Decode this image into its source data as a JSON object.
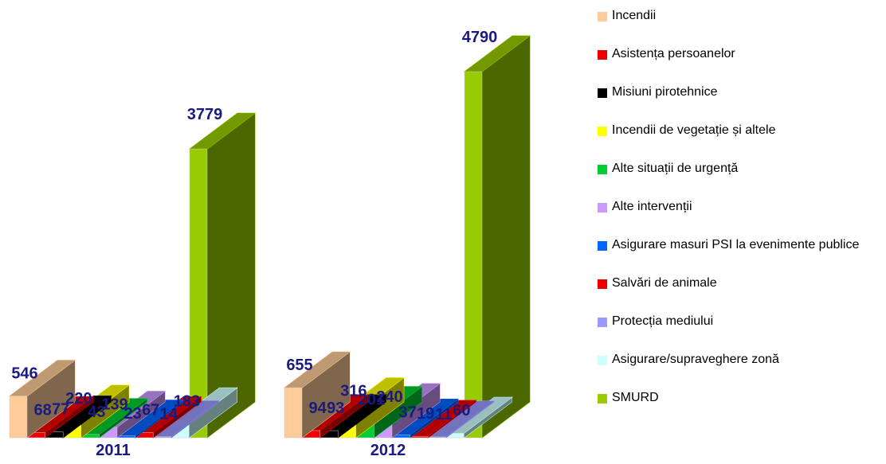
{
  "chart_data": {
    "type": "bar3d",
    "categories": [
      "2011",
      "2012"
    ],
    "series": [
      {
        "name": "Incendii",
        "color": "#ffcc99",
        "values": [
          546,
          655
        ]
      },
      {
        "name": "Asistența persoanelor",
        "color": "#ee0000",
        "values": [
          68,
          94
        ]
      },
      {
        "name": "Misiuni pirotehnice",
        "color": "#000000",
        "values": [
          77,
          93
        ]
      },
      {
        "name": "Incendii de vegetație și altele",
        "color": "#ffff00",
        "values": [
          220,
          316
        ]
      },
      {
        "name": "Alte situații de urgență",
        "color": "#00cc33",
        "values": [
          43,
          201
        ]
      },
      {
        "name": "Alte intervenții",
        "color": "#cc99ff",
        "values": [
          139,
          240
        ]
      },
      {
        "name": "Asigurare masuri PSI la evenimente publice",
        "color": "#0066ff",
        "values": [
          23,
          37
        ]
      },
      {
        "name": "Salvări de animale",
        "color": "#ee0000",
        "values": [
          67,
          19
        ]
      },
      {
        "name": "Protecția mediului",
        "color": "#9999ff",
        "values": [
          14,
          11
        ]
      },
      {
        "name": "Asigurare/supraveghere zonă",
        "color": "#ccffff",
        "values": [
          183,
          60
        ]
      },
      {
        "name": "SMURD",
        "color": "#99cc00",
        "values": [
          3779,
          4790
        ]
      }
    ]
  }
}
